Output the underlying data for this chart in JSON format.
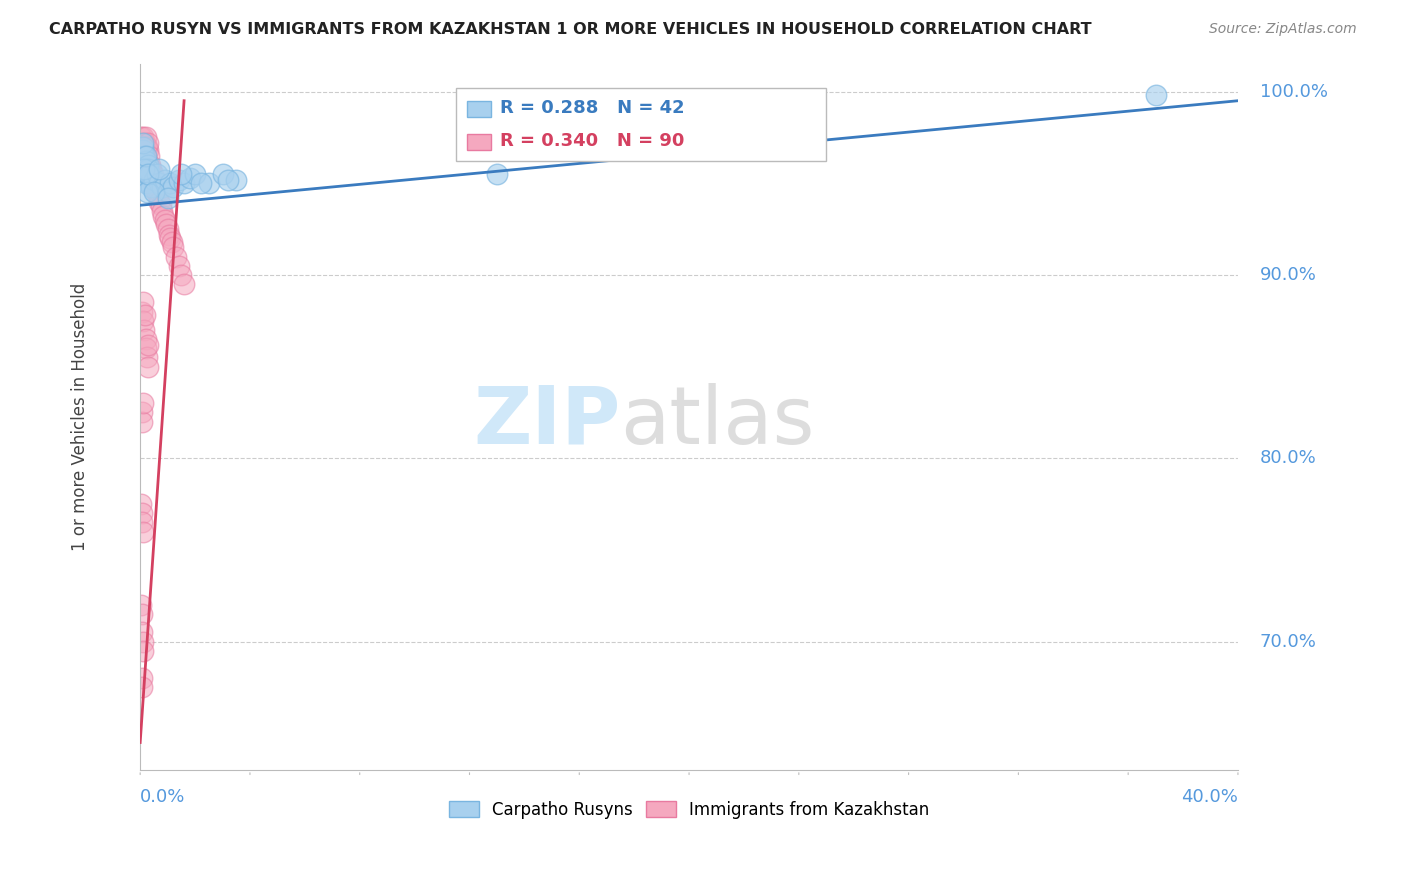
{
  "title": "CARPATHO RUSYN VS IMMIGRANTS FROM KAZAKHSTAN 1 OR MORE VEHICLES IN HOUSEHOLD CORRELATION CHART",
  "source": "Source: ZipAtlas.com",
  "ylabel": "1 or more Vehicles in Household",
  "legend1_R": "0.288",
  "legend1_N": "42",
  "legend2_R": "0.340",
  "legend2_N": "90",
  "blue_fill": "#a8d0ee",
  "blue_edge": "#7ab5e0",
  "pink_fill": "#f5a8bf",
  "pink_edge": "#e87aa0",
  "blue_line_color": "#3a7bbf",
  "pink_line_color": "#d44060",
  "tick_label_color": "#5599dd",
  "ylabel_color": "#444444",
  "title_color": "#222222",
  "source_color": "#888888",
  "watermark_zip_color": "#c8e4f8",
  "watermark_atlas_color": "#d8d8d8",
  "xlim": [
    0,
    40
  ],
  "ylim": [
    63,
    101.5
  ],
  "yticks": [
    70,
    80,
    90,
    100
  ],
  "blue_trend_x": [
    0,
    40
  ],
  "blue_trend_y": [
    93.8,
    99.5
  ],
  "pink_trend_x": [
    0,
    1.6
  ],
  "pink_trend_y": [
    64.5,
    99.5
  ],
  "blue_pts_x": [
    0.05,
    0.07,
    0.08,
    0.1,
    0.12,
    0.15,
    0.18,
    0.2,
    0.22,
    0.25,
    0.28,
    0.3,
    0.35,
    0.4,
    0.5,
    0.6,
    0.7,
    0.8,
    0.9,
    1.0,
    1.1,
    1.2,
    1.4,
    1.6,
    1.8,
    2.0,
    2.5,
    3.0,
    3.5,
    0.1,
    0.15,
    0.2,
    0.25,
    0.3,
    0.5,
    0.7,
    1.0,
    1.5,
    2.2,
    3.2,
    37.0,
    13.0
  ],
  "blue_pts_y": [
    95.2,
    96.0,
    95.5,
    96.8,
    97.0,
    96.5,
    95.8,
    96.2,
    95.0,
    95.5,
    96.0,
    95.8,
    95.5,
    94.8,
    95.2,
    95.5,
    95.0,
    94.8,
    95.2,
    94.5,
    95.0,
    94.8,
    95.2,
    95.0,
    95.3,
    95.5,
    95.0,
    95.5,
    95.2,
    97.2,
    95.8,
    96.5,
    94.5,
    95.5,
    94.5,
    95.8,
    94.2,
    95.5,
    95.0,
    95.2,
    99.8,
    95.5
  ],
  "pink_pts_x": [
    0.03,
    0.04,
    0.05,
    0.06,
    0.07,
    0.08,
    0.09,
    0.1,
    0.1,
    0.11,
    0.12,
    0.12,
    0.13,
    0.14,
    0.15,
    0.15,
    0.16,
    0.17,
    0.18,
    0.18,
    0.19,
    0.2,
    0.2,
    0.21,
    0.22,
    0.22,
    0.23,
    0.24,
    0.25,
    0.25,
    0.27,
    0.28,
    0.3,
    0.3,
    0.32,
    0.33,
    0.35,
    0.36,
    0.38,
    0.4,
    0.42,
    0.45,
    0.47,
    0.5,
    0.52,
    0.55,
    0.58,
    0.6,
    0.62,
    0.65,
    0.68,
    0.7,
    0.75,
    0.8,
    0.85,
    0.9,
    0.95,
    1.0,
    1.05,
    1.1,
    1.15,
    1.2,
    1.3,
    1.4,
    1.5,
    1.6,
    0.08,
    0.1,
    0.12,
    0.15,
    0.18,
    0.2,
    0.22,
    0.25,
    0.28,
    0.3,
    0.05,
    0.07,
    0.09,
    0.04,
    0.06,
    0.08,
    0.1,
    0.03,
    0.05,
    0.07,
    0.09,
    0.11,
    0.06,
    0.08
  ],
  "pink_pts_y": [
    97.5,
    96.8,
    97.0,
    96.5,
    97.2,
    96.8,
    97.0,
    96.5,
    95.8,
    96.2,
    96.8,
    97.5,
    96.0,
    95.5,
    96.5,
    97.0,
    96.2,
    95.8,
    96.0,
    97.2,
    95.5,
    96.8,
    97.5,
    96.0,
    95.8,
    97.0,
    96.5,
    95.5,
    96.2,
    97.0,
    96.8,
    95.5,
    96.0,
    97.2,
    95.8,
    96.5,
    95.5,
    96.0,
    95.8,
    95.5,
    95.2,
    95.0,
    95.5,
    95.0,
    94.8,
    95.2,
    94.5,
    95.0,
    94.5,
    94.8,
    94.5,
    94.0,
    93.8,
    93.5,
    93.2,
    93.0,
    92.8,
    92.5,
    92.2,
    92.0,
    91.8,
    91.5,
    91.0,
    90.5,
    90.0,
    89.5,
    88.0,
    88.5,
    87.5,
    87.0,
    87.8,
    86.5,
    86.0,
    85.5,
    86.2,
    85.0,
    82.5,
    82.0,
    83.0,
    77.5,
    77.0,
    76.5,
    76.0,
    72.0,
    71.5,
    70.5,
    70.0,
    69.5,
    68.0,
    67.5
  ]
}
